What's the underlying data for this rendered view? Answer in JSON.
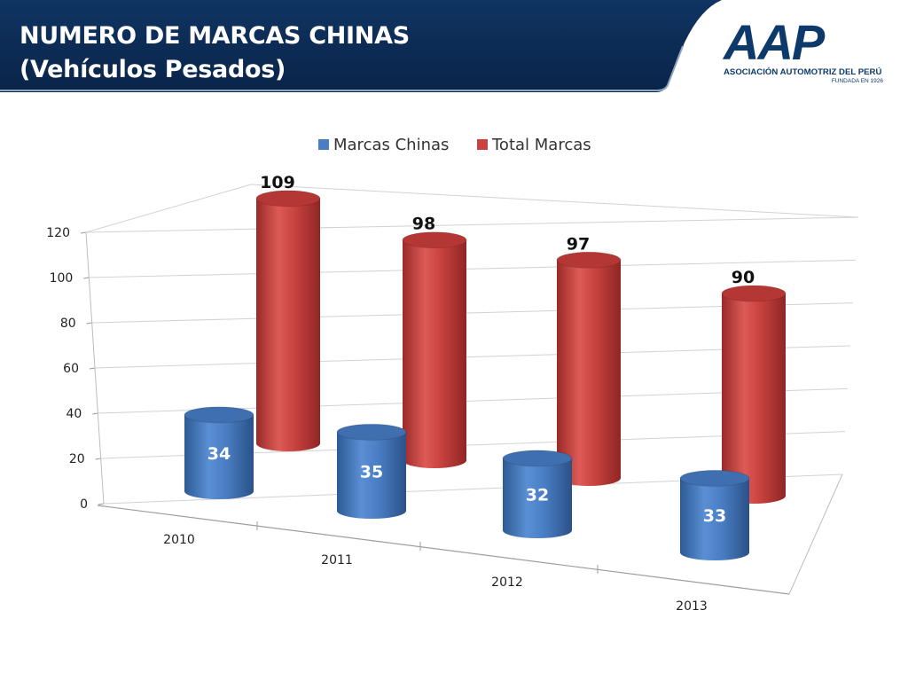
{
  "header": {
    "title_line1": "NUMERO DE MARCAS CHINAS",
    "title_line2": "(Vehículos Pesados)"
  },
  "logo": {
    "mark": "AAP",
    "name": "ASOCIACIÓN AUTOMOTRIZ DEL PERÚ",
    "founded": "FUNDADA EN 1926"
  },
  "colors": {
    "header_bg": "#0d2d57",
    "blue_series": "#4a7ec4",
    "red_series": "#c9423f"
  },
  "chart_data": {
    "type": "bar",
    "style": "3d-cylinder",
    "categories": [
      "2010",
      "2011",
      "2012",
      "2013"
    ],
    "series": [
      {
        "name": "Marcas Chinas",
        "values": [
          34,
          35,
          32,
          33
        ]
      },
      {
        "name": "Total Marcas",
        "values": [
          109,
          98,
          97,
          90
        ]
      }
    ],
    "ylim": [
      0,
      120
    ],
    "yticks": [
      0,
      20,
      40,
      60,
      80,
      100,
      120
    ],
    "legend": "top",
    "grid": true
  }
}
